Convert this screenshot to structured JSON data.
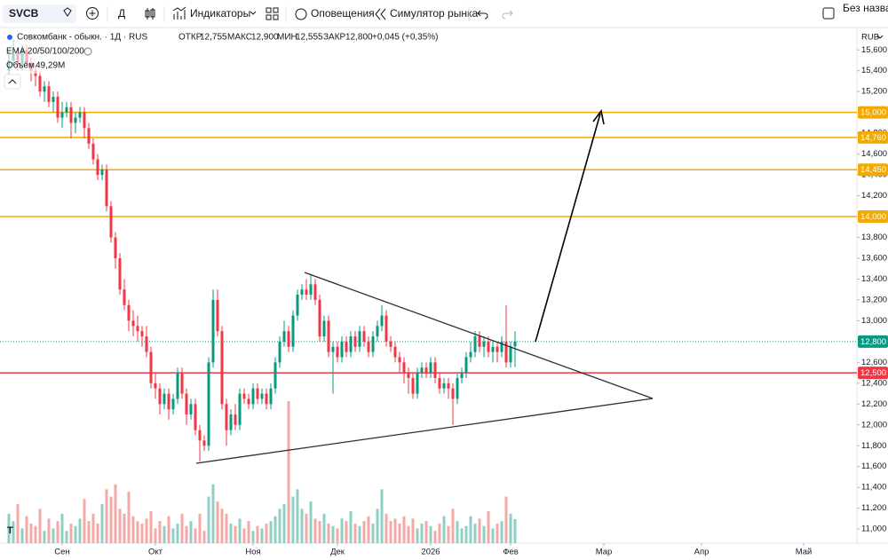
{
  "toolbar": {
    "symbol": "SVCB",
    "interval": "Д",
    "indicators": "Индикаторы",
    "alerts": "Оповещения",
    "replay": "Симулятор рынка",
    "layout_name": "Без названия"
  },
  "chart_data": {
    "type": "candlestick",
    "title": "Совкомбанк - обыкн. · 1Д · RUS",
    "ohlc_legend": [
      {
        "label": "ОТКР",
        "value": "12,755"
      },
      {
        "label": "МАКС",
        "value": "12,900"
      },
      {
        "label": "МИН",
        "value": "12,555"
      },
      {
        "label": "ЗАКР",
        "value": "12,800"
      }
    ],
    "change": "+0,045 (+0,35%)",
    "indicator": "EMA 20/50/100/200",
    "volume_name": "Объём",
    "volume_value_label": "49,29M",
    "currency": "RUB",
    "up_color": "#089981",
    "down_color": "#f23645",
    "volume_up_color": "#8fcfc4",
    "volume_down_color": "#f6a8a6",
    "open": [
      15400,
      15500,
      15560,
      15450,
      15600,
      15480,
      15400,
      15350,
      15200,
      15250,
      15100,
      15150,
      14950,
      15000,
      15050,
      14900,
      14950,
      15000,
      14850,
      14700,
      14550,
      14400,
      14450,
      14100,
      13800,
      13600,
      13300,
      13150,
      13000,
      12950,
      12900,
      12850,
      12700,
      12400,
      12350,
      12200,
      12300,
      12150,
      12250,
      12500,
      12300,
      12100,
      12200,
      11950,
      11850,
      11800,
      12600,
      13200,
      12900,
      12200,
      11950,
      12100,
      12000,
      12300,
      12250,
      12200,
      12350,
      12250,
      12300,
      12200,
      12350,
      12600,
      12800,
      12900,
      12750,
      13050,
      13250,
      13300,
      13250,
      13350,
      13200,
      12850,
      13000,
      12700,
      12750,
      12650,
      12800,
      12700,
      12850,
      12750,
      12900,
      12800,
      12700,
      12850,
      12950,
      13050,
      12800,
      12750,
      12650,
      12600,
      12500,
      12450,
      12300,
      12500,
      12550,
      12500,
      12600,
      12450,
      12350,
      12400,
      12350,
      12250,
      12450,
      12500,
      12650,
      12700,
      12850,
      12750,
      12800,
      12700,
      12750,
      12700,
      12800,
      12600,
      12755
    ],
    "high": [
      15600,
      15700,
      15610,
      15650,
      15650,
      15530,
      15450,
      15400,
      15300,
      15300,
      15200,
      15200,
      15100,
      15100,
      15100,
      15000,
      15050,
      15050,
      14900,
      14750,
      14600,
      14500,
      14500,
      14150,
      13850,
      13650,
      13400,
      13200,
      13100,
      13050,
      12950,
      12950,
      12750,
      12500,
      12400,
      12350,
      12350,
      12300,
      12550,
      12550,
      12350,
      12250,
      12250,
      12000,
      11900,
      12650,
      13300,
      13300,
      12950,
      12250,
      12150,
      12200,
      12350,
      12350,
      12300,
      12400,
      12400,
      12350,
      12350,
      12400,
      12650,
      12850,
      13000,
      12950,
      13100,
      13300,
      13350,
      13400,
      13450,
      13400,
      13250,
      13050,
      13050,
      12800,
      12800,
      12850,
      12850,
      12900,
      12900,
      12950,
      12950,
      12850,
      12900,
      13000,
      13150,
      13100,
      12850,
      12800,
      12700,
      12650,
      12550,
      12500,
      12550,
      12600,
      12600,
      12650,
      12650,
      12500,
      12450,
      12450,
      12400,
      12500,
      12550,
      12700,
      12800,
      12900,
      12900,
      12850,
      12850,
      12800,
      12800,
      12850,
      13150,
      12800,
      12900
    ],
    "low": [
      15350,
      15450,
      15400,
      15400,
      15430,
      15300,
      15250,
      15150,
      15100,
      15050,
      15000,
      14900,
      14850,
      14950,
      14750,
      14800,
      14900,
      14750,
      14650,
      14500,
      14350,
      14350,
      14050,
      13750,
      13500,
      13250,
      13100,
      12900,
      12850,
      12800,
      12750,
      12650,
      12350,
      12250,
      12100,
      12150,
      12050,
      12100,
      12200,
      12250,
      12000,
      12050,
      11900,
      11650,
      11750,
      11750,
      12550,
      12850,
      12150,
      11800,
      11900,
      11950,
      11950,
      12200,
      12150,
      12150,
      12200,
      12200,
      12150,
      12150,
      12300,
      12550,
      12750,
      12700,
      12700,
      13000,
      13200,
      13200,
      13200,
      13150,
      12800,
      12800,
      12650,
      12300,
      12600,
      12600,
      12650,
      12650,
      12700,
      12700,
      12750,
      12650,
      12650,
      12800,
      12900,
      12750,
      12700,
      12600,
      12500,
      12400,
      12300,
      12250,
      12250,
      12450,
      12450,
      12450,
      12400,
      12300,
      12300,
      12250,
      12000,
      12200,
      12400,
      12450,
      12600,
      12650,
      12700,
      12650,
      12650,
      12600,
      12600,
      12650,
      12550,
      12550,
      12555
    ],
    "close": [
      15500,
      15560,
      15450,
      15600,
      15480,
      15400,
      15350,
      15200,
      15250,
      15100,
      15150,
      14950,
      15000,
      15050,
      14900,
      14950,
      15000,
      14850,
      14700,
      14550,
      14400,
      14450,
      14100,
      13800,
      13600,
      13300,
      13150,
      13000,
      12950,
      12900,
      12850,
      12700,
      12400,
      12350,
      12200,
      12300,
      12150,
      12250,
      12500,
      12300,
      12100,
      12200,
      11950,
      11850,
      11800,
      12600,
      13200,
      12900,
      12200,
      11950,
      12100,
      12000,
      12300,
      12250,
      12200,
      12350,
      12250,
      12300,
      12200,
      12350,
      12600,
      12800,
      12900,
      12750,
      13050,
      13250,
      13300,
      13250,
      13350,
      13200,
      12850,
      13000,
      12700,
      12750,
      12650,
      12800,
      12700,
      12850,
      12750,
      12900,
      12800,
      12700,
      12850,
      12950,
      13050,
      12800,
      12750,
      12650,
      12600,
      12500,
      12450,
      12300,
      12500,
      12550,
      12500,
      12600,
      12450,
      12350,
      12400,
      12350,
      12250,
      12450,
      12500,
      12650,
      12700,
      12850,
      12750,
      12800,
      12700,
      12750,
      12700,
      12800,
      12600,
      12755,
      12800
    ],
    "volume": [
      60,
      45,
      80,
      30,
      55,
      40,
      35,
      70,
      25,
      50,
      30,
      45,
      60,
      25,
      40,
      35,
      50,
      90,
      45,
      60,
      40,
      80,
      110,
      95,
      120,
      70,
      60,
      105,
      55,
      45,
      40,
      50,
      65,
      30,
      45,
      35,
      55,
      30,
      40,
      60,
      35,
      45,
      30,
      60,
      25,
      95,
      120,
      85,
      70,
      60,
      40,
      35,
      50,
      30,
      45,
      25,
      35,
      30,
      40,
      45,
      55,
      70,
      80,
      290,
      95,
      110,
      70,
      60,
      85,
      50,
      45,
      60,
      40,
      35,
      30,
      50,
      45,
      65,
      40,
      35,
      45,
      55,
      40,
      70,
      110,
      60,
      45,
      50,
      40,
      55,
      35,
      50,
      30,
      40,
      45,
      35,
      25,
      40,
      55,
      35,
      70,
      45,
      30,
      35,
      55,
      40,
      50,
      35,
      65,
      30,
      40,
      45,
      95,
      60,
      49.29
    ],
    "xlim": [
      -2,
      191
    ],
    "xticks": [
      {
        "value": 12,
        "label": "Сен"
      },
      {
        "value": 33,
        "label": "Окт"
      },
      {
        "value": 55,
        "label": "Ноя"
      },
      {
        "value": 74,
        "label": "Дек"
      },
      {
        "value": 95,
        "label": "2026"
      },
      {
        "value": 113,
        "label": "Фев"
      },
      {
        "value": 134,
        "label": "Мар"
      },
      {
        "value": 156,
        "label": "Апр"
      },
      {
        "value": 179,
        "label": "Май"
      }
    ],
    "ylim": [
      10865,
      15815
    ],
    "yticks": [
      {
        "value": 11000,
        "label": "11,000"
      },
      {
        "value": 11200,
        "label": "11,200"
      },
      {
        "value": 11400,
        "label": "11,400"
      },
      {
        "value": 11600,
        "label": "11,600"
      },
      {
        "value": 11800,
        "label": "11,800"
      },
      {
        "value": 12000,
        "label": "12,000"
      },
      {
        "value": 12200,
        "label": "12,200"
      },
      {
        "value": 12400,
        "label": "12,400"
      },
      {
        "value": 12600,
        "label": "12,600"
      },
      {
        "value": 13000,
        "label": "13,000"
      },
      {
        "value": 13200,
        "label": "13,200"
      },
      {
        "value": 13400,
        "label": "13,400"
      },
      {
        "value": 13600,
        "label": "13,600"
      },
      {
        "value": 13800,
        "label": "13,800"
      },
      {
        "value": 14200,
        "label": "14,200"
      },
      {
        "value": 14400,
        "label": "14,400"
      },
      {
        "value": 14600,
        "label": "14,600"
      },
      {
        "value": 14800,
        "label": "14,800"
      },
      {
        "value": 15200,
        "label": "15,200"
      },
      {
        "value": 15400,
        "label": "15,400"
      },
      {
        "value": 15600,
        "label": "15,600"
      }
    ],
    "levels": [
      {
        "value": 15000,
        "label": "15,000",
        "color": "#f2a900",
        "style": "solid"
      },
      {
        "value": 14760,
        "label": "14,760",
        "color": "#f2a900",
        "style": "solid"
      },
      {
        "value": 14450,
        "label": "14,450",
        "color": "#f2a900",
        "style": "solid"
      },
      {
        "value": 14000,
        "label": "14,000",
        "color": "#f2a900",
        "style": "solid"
      },
      {
        "value": 12800,
        "label": "12,800",
        "color": "#089981",
        "style": "dotted"
      },
      {
        "value": 12500,
        "label": "12,500",
        "color": "#f23645",
        "style": "solid"
      }
    ]
  }
}
